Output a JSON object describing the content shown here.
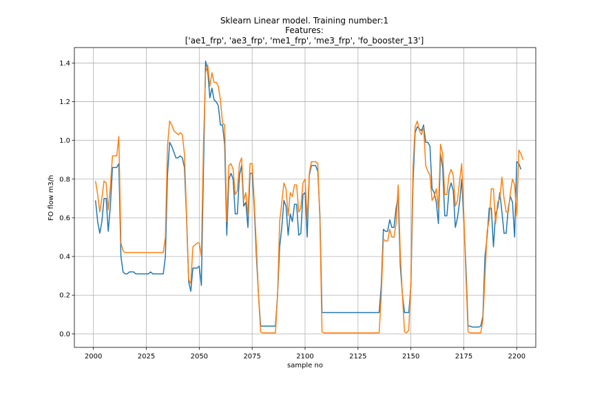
{
  "chart_data": {
    "type": "line",
    "title_lines": [
      "Sklearn Linear model. Training number:1",
      "Features:",
      "['ae1_frp', 'ae3_frp', 'me1_frp', 'me3_frp', 'fo_booster_13']"
    ],
    "xlabel": "sample no",
    "ylabel": "FO flow m3/h",
    "xlim": [
      1991,
      2209
    ],
    "ylim": [
      -0.07,
      1.48
    ],
    "xticks": [
      2000,
      2025,
      2050,
      2075,
      2100,
      2125,
      2150,
      2175,
      2200
    ],
    "yticks": [
      0.0,
      0.2,
      0.4,
      0.6,
      0.8,
      1.0,
      1.2,
      1.4
    ],
    "xtick_labels": [
      "2000",
      "2025",
      "2050",
      "2075",
      "2100",
      "2125",
      "2150",
      "2175",
      "2200"
    ],
    "ytick_labels": [
      "0.0",
      "0.2",
      "0.4",
      "0.6",
      "0.8",
      "1.0",
      "1.2",
      "1.4"
    ],
    "grid": true,
    "x_start": 2001,
    "series": [
      {
        "color": "#1f77b4",
        "values": [
          0.69,
          0.58,
          0.52,
          0.58,
          0.7,
          0.7,
          0.53,
          0.66,
          0.86,
          0.86,
          0.86,
          0.88,
          0.4,
          0.32,
          0.31,
          0.31,
          0.32,
          0.32,
          0.32,
          0.31,
          0.31,
          0.31,
          0.31,
          0.31,
          0.31,
          0.31,
          0.32,
          0.31,
          0.31,
          0.31,
          0.31,
          0.31,
          0.31,
          0.4,
          0.82,
          0.99,
          0.97,
          0.94,
          0.91,
          0.91,
          0.92,
          0.91,
          0.86,
          0.6,
          0.27,
          0.22,
          0.34,
          0.34,
          0.34,
          0.35,
          0.25,
          0.85,
          1.41,
          1.36,
          1.22,
          1.27,
          1.21,
          1.2,
          1.18,
          1.08,
          1.08,
          0.98,
          0.51,
          0.8,
          0.83,
          0.8,
          0.62,
          0.62,
          0.82,
          0.87,
          0.66,
          0.68,
          0.55,
          0.83,
          0.83,
          0.65,
          0.4,
          0.2,
          0.04,
          0.04,
          0.04,
          0.04,
          0.04,
          0.04,
          0.04,
          0.04,
          0.2,
          0.45,
          0.55,
          0.69,
          0.66,
          0.51,
          0.62,
          0.58,
          0.67,
          0.67,
          0.51,
          0.52,
          0.72,
          0.73,
          0.5,
          0.82,
          0.87,
          0.87,
          0.87,
          0.84,
          0.62,
          0.11,
          0.11,
          0.11,
          0.11,
          0.11,
          0.11,
          0.11,
          0.11,
          0.11,
          0.11,
          0.11,
          0.11,
          0.11,
          0.11,
          0.11,
          0.11,
          0.11,
          0.11,
          0.11,
          0.11,
          0.11,
          0.11,
          0.11,
          0.11,
          0.11,
          0.11,
          0.11,
          0.11,
          0.25,
          0.54,
          0.53,
          0.53,
          0.59,
          0.55,
          0.55,
          0.65,
          0.71,
          0.35,
          0.2,
          0.11,
          0.11,
          0.11,
          0.25,
          0.78,
          1.04,
          1.07,
          1.06,
          1.05,
          1.08,
          0.99,
          0.99,
          0.97,
          0.75,
          0.73,
          0.68,
          0.57,
          0.93,
          0.86,
          0.61,
          0.61,
          0.74,
          0.78,
          0.74,
          0.55,
          0.6,
          0.68,
          0.8,
          0.58,
          0.35,
          0.04,
          0.04,
          0.035,
          0.035,
          0.035,
          0.035,
          0.04,
          0.09,
          0.4,
          0.5,
          0.65,
          0.65,
          0.45,
          0.62,
          0.65,
          0.73,
          0.63,
          0.52,
          0.52,
          0.65,
          0.71,
          0.68,
          0.5,
          0.89,
          0.88,
          0.85
        ]
      },
      {
        "color": "#ff7f0e",
        "values": [
          0.79,
          0.72,
          0.63,
          0.7,
          0.79,
          0.78,
          0.64,
          0.76,
          0.92,
          0.92,
          0.92,
          1.02,
          0.47,
          0.43,
          0.42,
          0.42,
          0.42,
          0.42,
          0.42,
          0.42,
          0.42,
          0.42,
          0.42,
          0.42,
          0.42,
          0.42,
          0.42,
          0.42,
          0.42,
          0.42,
          0.42,
          0.42,
          0.42,
          0.5,
          0.97,
          1.1,
          1.08,
          1.05,
          1.04,
          1.03,
          1.04,
          1.03,
          0.93,
          0.62,
          0.28,
          0.26,
          0.45,
          0.46,
          0.47,
          0.47,
          0.4,
          0.98,
          1.35,
          1.39,
          1.28,
          1.35,
          1.3,
          1.3,
          1.28,
          1.21,
          1.09,
          1.08,
          0.58,
          0.87,
          0.88,
          0.85,
          0.72,
          0.74,
          0.88,
          0.91,
          0.69,
          0.73,
          0.61,
          0.88,
          0.88,
          0.68,
          0.45,
          0.2,
          0.01,
          0.005,
          0.005,
          0.005,
          0.005,
          0.005,
          0.005,
          0.005,
          0.2,
          0.58,
          0.68,
          0.78,
          0.75,
          0.61,
          0.73,
          0.71,
          0.77,
          0.77,
          0.63,
          0.65,
          0.78,
          0.8,
          0.59,
          0.83,
          0.89,
          0.89,
          0.89,
          0.88,
          0.59,
          0.01,
          0.005,
          0.005,
          0.005,
          0.005,
          0.005,
          0.005,
          0.005,
          0.005,
          0.005,
          0.005,
          0.005,
          0.005,
          0.005,
          0.005,
          0.005,
          0.005,
          0.005,
          0.005,
          0.005,
          0.005,
          0.005,
          0.005,
          0.005,
          0.005,
          0.005,
          0.005,
          0.005,
          0.2,
          0.49,
          0.48,
          0.48,
          0.54,
          0.5,
          0.5,
          0.57,
          0.77,
          0.41,
          0.2,
          0.01,
          0.005,
          0.02,
          0.28,
          0.86,
          1.07,
          1.1,
          1.05,
          1.03,
          1.07,
          0.87,
          0.84,
          0.82,
          0.69,
          0.71,
          0.75,
          0.65,
          0.98,
          0.93,
          0.72,
          0.72,
          0.82,
          0.85,
          0.82,
          0.66,
          0.69,
          0.79,
          0.88,
          0.62,
          0.3,
          0.01,
          0.005,
          0.005,
          0.005,
          0.005,
          0.005,
          0.005,
          0.07,
          0.3,
          0.53,
          0.59,
          0.75,
          0.75,
          0.57,
          0.68,
          0.7,
          0.81,
          0.7,
          0.63,
          0.63,
          0.73,
          0.8,
          0.77,
          0.61,
          0.95,
          0.93,
          0.9
        ]
      }
    ]
  }
}
